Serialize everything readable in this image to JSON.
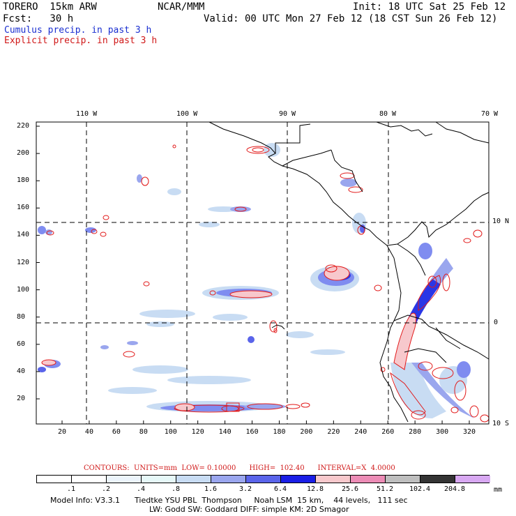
{
  "header": {
    "model": "TORERO  15km ARW",
    "center": "NCAR/MMM",
    "init": "Init: 18 UTC Sat 25 Feb 12",
    "fcst": "Fcst:   30 h",
    "valid": "Valid: 00 UTC Mon 27 Feb 12 (18 CST Sun 26 Feb 12)",
    "field1": "Cumulus precip. in past 3 h",
    "field2": "Explicit precip. in past 3 h"
  },
  "axes": {
    "top_lon_labels": [
      "110 W",
      "100 W",
      "90 W",
      "80 W",
      "70 W"
    ],
    "right_lat_labels": [
      "10 N",
      "0",
      "10 S"
    ],
    "left_y_ticks": [
      "220",
      "200",
      "180",
      "160",
      "140",
      "120",
      "100",
      "80",
      "60",
      "40",
      "20"
    ],
    "bottom_x_ticks": [
      "20",
      "40",
      "60",
      "80",
      "100",
      "120",
      "140",
      "160",
      "180",
      "200",
      "220",
      "240",
      "260",
      "280",
      "300",
      "320"
    ]
  },
  "contours": {
    "label": "CONTOURS:  UNITS=mm  LOW= 0.10000      HIGH=  102.40      INTERVAL=X  4.0000"
  },
  "colorbar": {
    "labels": [
      ".1",
      ".2",
      ".4",
      ".8",
      "1.6",
      "3.2",
      "6.4",
      "12.8",
      "25.6",
      "51.2",
      "102.4",
      "204.8"
    ],
    "unit": "mm",
    "colors": [
      "#ffffff",
      "#ffffff",
      "#ecf4fb",
      "#e6f8f8",
      "#c8dcf3",
      "#9aa6ee",
      "#5a64ea",
      "#1a1ee6",
      "#f7c8cc",
      "#ec8cb6",
      "#bebebe",
      "#343434",
      "#d8a8f2"
    ]
  },
  "footer": {
    "line1": "Model Info: V3.3.1      Tiedtke YSU PBL  Thompson     Noah LSM  15 km,    44 levels,   111 sec",
    "line2": "LW: Godd SW: Goddard DIFF: simple KM: 2D Smagor"
  },
  "map_colors": {
    "coast": "#000000",
    "grid": "#000000",
    "cumulus_light": "#c8dcf3",
    "cumulus_mid": "#7f8cf0",
    "cumulus_dark": "#2a36e6",
    "explicit_contour": "#e21a1a",
    "explicit_fill": "#f7c8cc"
  }
}
